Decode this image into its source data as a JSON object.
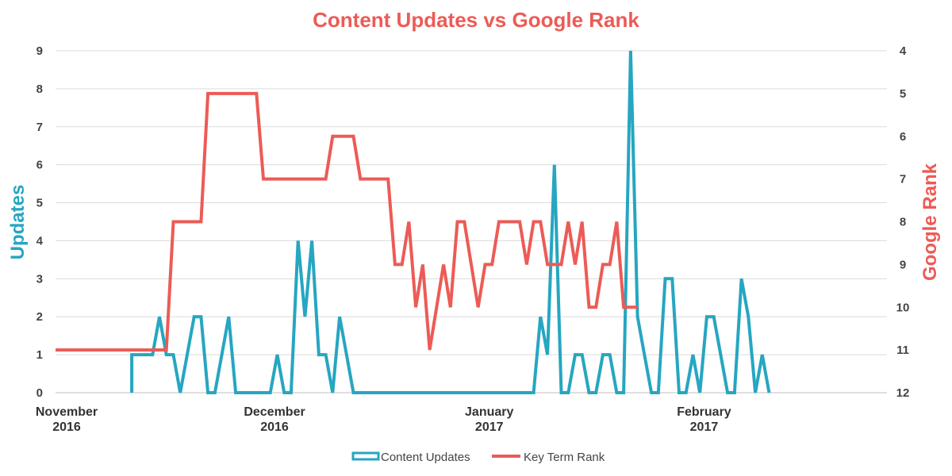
{
  "chart_data": {
    "type": "line",
    "title": "Content Updates vs Google Rank",
    "ylabel_left": "Updates",
    "ylabel_right": "Google Rank",
    "ylim_left": [
      0,
      9
    ],
    "yticks_left": [
      "0",
      "1",
      "2",
      "3",
      "4",
      "5",
      "6",
      "7",
      "8",
      "9"
    ],
    "ylim_right_inverted": [
      12,
      4
    ],
    "yticks_right": [
      "4",
      "5",
      "6",
      "7",
      "8",
      "9",
      "10",
      "11",
      "12"
    ],
    "x_axis_type": "date",
    "xlim": [
      "2016-11-01",
      "2017-03-01"
    ],
    "x_ticks": [
      {
        "date": "2016-11-01",
        "line1": "November",
        "line2": "2016"
      },
      {
        "date": "2016-12-01",
        "line1": "December",
        "line2": "2016"
      },
      {
        "date": "2017-01-01",
        "line1": "January",
        "line2": "2017"
      },
      {
        "date": "2017-02-01",
        "line1": "February",
        "line2": "2017"
      }
    ],
    "grid": "horizontal",
    "legend_position": "bottom",
    "series": [
      {
        "name": "Content Updates",
        "axis": "left",
        "color": "#26a6c1",
        "style": "outlined",
        "points": [
          [
            "2016-11-12",
            0
          ],
          [
            "2016-11-12",
            1
          ],
          [
            "2016-11-15",
            1
          ],
          [
            "2016-11-16",
            2
          ],
          [
            "2016-11-17",
            1
          ],
          [
            "2016-11-18",
            1
          ],
          [
            "2016-11-19",
            0
          ],
          [
            "2016-11-21",
            2
          ],
          [
            "2016-11-22",
            2
          ],
          [
            "2016-11-23",
            0
          ],
          [
            "2016-11-24",
            0
          ],
          [
            "2016-11-26",
            2
          ],
          [
            "2016-11-27",
            0
          ],
          [
            "2016-12-02",
            0
          ],
          [
            "2016-12-03",
            1
          ],
          [
            "2016-12-04",
            0
          ],
          [
            "2016-12-05",
            0
          ],
          [
            "2016-12-06",
            4
          ],
          [
            "2016-12-07",
            2
          ],
          [
            "2016-12-08",
            4
          ],
          [
            "2016-12-09",
            1
          ],
          [
            "2016-12-10",
            1
          ],
          [
            "2016-12-11",
            0
          ],
          [
            "2016-12-12",
            2
          ],
          [
            "2016-12-14",
            0
          ],
          [
            "2016-12-29",
            0
          ],
          [
            "2016-12-30",
            0
          ],
          [
            "2017-01-09",
            0
          ],
          [
            "2017-01-10",
            2
          ],
          [
            "2017-01-11",
            1
          ],
          [
            "2017-01-12",
            6
          ],
          [
            "2017-01-13",
            0
          ],
          [
            "2017-01-14",
            0
          ],
          [
            "2017-01-15",
            1
          ],
          [
            "2017-01-16",
            1
          ],
          [
            "2017-01-17",
            0
          ],
          [
            "2017-01-18",
            0
          ],
          [
            "2017-01-19",
            1
          ],
          [
            "2017-01-20",
            1
          ],
          [
            "2017-01-21",
            0
          ],
          [
            "2017-01-22",
            0
          ],
          [
            "2017-01-23",
            9
          ],
          [
            "2017-01-24",
            2
          ],
          [
            "2017-01-25",
            1
          ],
          [
            "2017-01-26",
            0
          ],
          [
            "2017-01-27",
            0
          ],
          [
            "2017-01-28",
            3
          ],
          [
            "2017-01-29",
            3
          ],
          [
            "2017-01-30",
            0
          ],
          [
            "2017-01-31",
            0
          ],
          [
            "2017-02-01",
            1
          ],
          [
            "2017-02-02",
            0
          ],
          [
            "2017-02-03",
            2
          ],
          [
            "2017-02-04",
            2
          ],
          [
            "2017-02-05",
            1
          ],
          [
            "2017-02-06",
            0
          ],
          [
            "2017-02-07",
            0
          ],
          [
            "2017-02-08",
            3
          ],
          [
            "2017-02-09",
            2
          ],
          [
            "2017-02-10",
            0
          ],
          [
            "2017-02-11",
            1
          ],
          [
            "2017-02-12",
            0
          ]
        ]
      },
      {
        "name": "Key Term Rank",
        "axis": "right",
        "color": "#ec5b56",
        "style": "solid",
        "points": [
          [
            "2016-11-01",
            11
          ],
          [
            "2016-11-15",
            11
          ],
          [
            "2016-11-17",
            11
          ],
          [
            "2016-11-18",
            8
          ],
          [
            "2016-11-22",
            8
          ],
          [
            "2016-11-23",
            5
          ],
          [
            "2016-11-30",
            5
          ],
          [
            "2016-12-01",
            7
          ],
          [
            "2016-12-10",
            7
          ],
          [
            "2016-12-11",
            6
          ],
          [
            "2016-12-14",
            6
          ],
          [
            "2016-12-15",
            7
          ],
          [
            "2016-12-19",
            7
          ],
          [
            "2016-12-20",
            9
          ],
          [
            "2016-12-21",
            9
          ],
          [
            "2016-12-22",
            8
          ],
          [
            "2016-12-23",
            10
          ],
          [
            "2016-12-24",
            9
          ],
          [
            "2016-12-25",
            11
          ],
          [
            "2016-12-27",
            9
          ],
          [
            "2016-12-28",
            10
          ],
          [
            "2016-12-29",
            8
          ],
          [
            "2016-12-30",
            8
          ],
          [
            "2016-12-31",
            9
          ],
          [
            "2017-01-01",
            10
          ],
          [
            "2017-01-02",
            9
          ],
          [
            "2017-01-03",
            9
          ],
          [
            "2017-01-04",
            8
          ],
          [
            "2017-01-07",
            8
          ],
          [
            "2017-01-08",
            9
          ],
          [
            "2017-01-09",
            8
          ],
          [
            "2017-01-10",
            8
          ],
          [
            "2017-01-11",
            9
          ],
          [
            "2017-01-13",
            9
          ],
          [
            "2017-01-14",
            8
          ],
          [
            "2017-01-15",
            9
          ],
          [
            "2017-01-16",
            8
          ],
          [
            "2017-01-17",
            10
          ],
          [
            "2017-01-18",
            10
          ],
          [
            "2017-01-19",
            9
          ],
          [
            "2017-01-20",
            9
          ],
          [
            "2017-01-21",
            8
          ],
          [
            "2017-01-22",
            10
          ],
          [
            "2017-01-24",
            10
          ]
        ]
      }
    ]
  }
}
